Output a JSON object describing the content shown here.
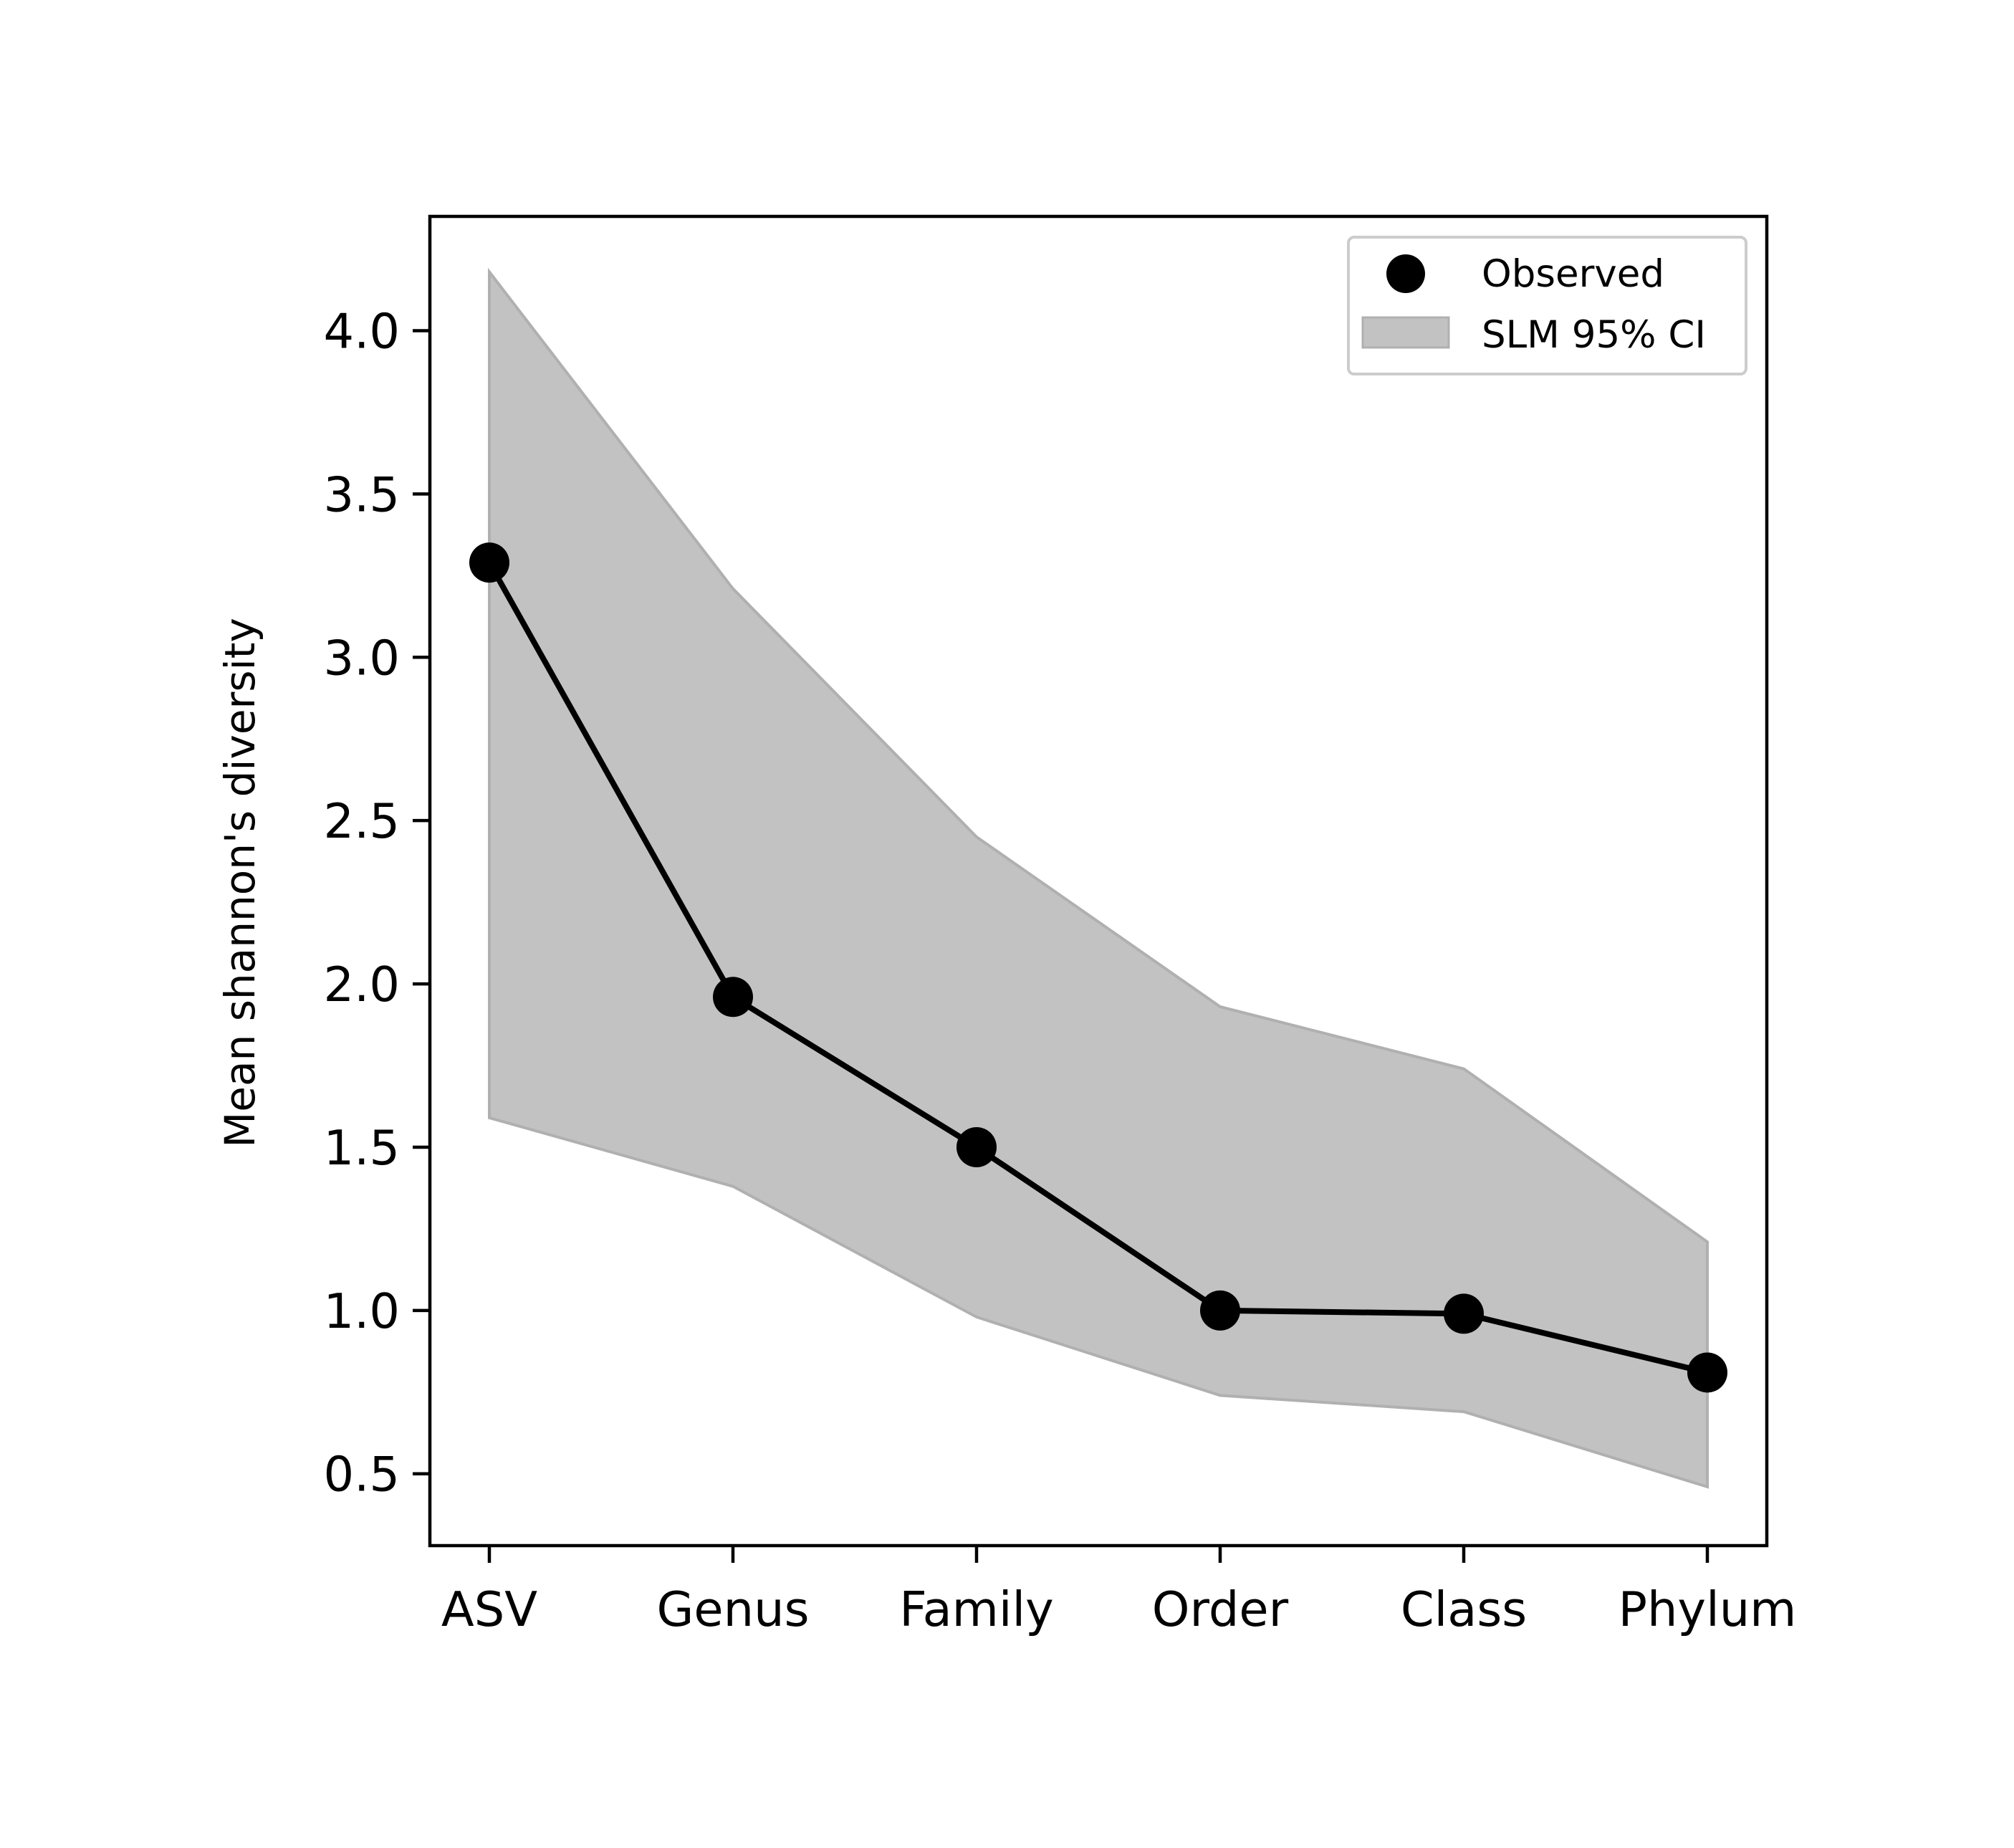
{
  "chart_data": {
    "type": "line",
    "title": "",
    "xlabel": "",
    "ylabel": "Mean shannon's diversity",
    "categories": [
      "ASV",
      "Genus",
      "Family",
      "Order",
      "Class",
      "Phylum"
    ],
    "ylim": [
      0.28,
      4.35
    ],
    "yticks": [
      0.5,
      1.0,
      1.5,
      2.0,
      2.5,
      3.0,
      3.5,
      4.0
    ],
    "ytick_labels": [
      "0.5",
      "1.0",
      "1.5",
      "2.0",
      "2.5",
      "3.0",
      "3.5",
      "4.0"
    ],
    "grid": false,
    "legend_position": "top-right",
    "series": [
      {
        "name": "Observed",
        "kind": "line-with-markers",
        "color": "#000000",
        "values": [
          3.29,
          1.96,
          1.5,
          1.0,
          0.99,
          0.81
        ]
      }
    ],
    "band": {
      "name": "SLM 95% CI",
      "color": "#c2c2c2",
      "edge_color": "#b0b0b0",
      "lower": [
        1.59,
        1.38,
        0.98,
        0.74,
        0.69,
        0.46
      ],
      "upper": [
        4.18,
        3.21,
        2.45,
        1.93,
        1.74,
        1.21
      ]
    }
  }
}
